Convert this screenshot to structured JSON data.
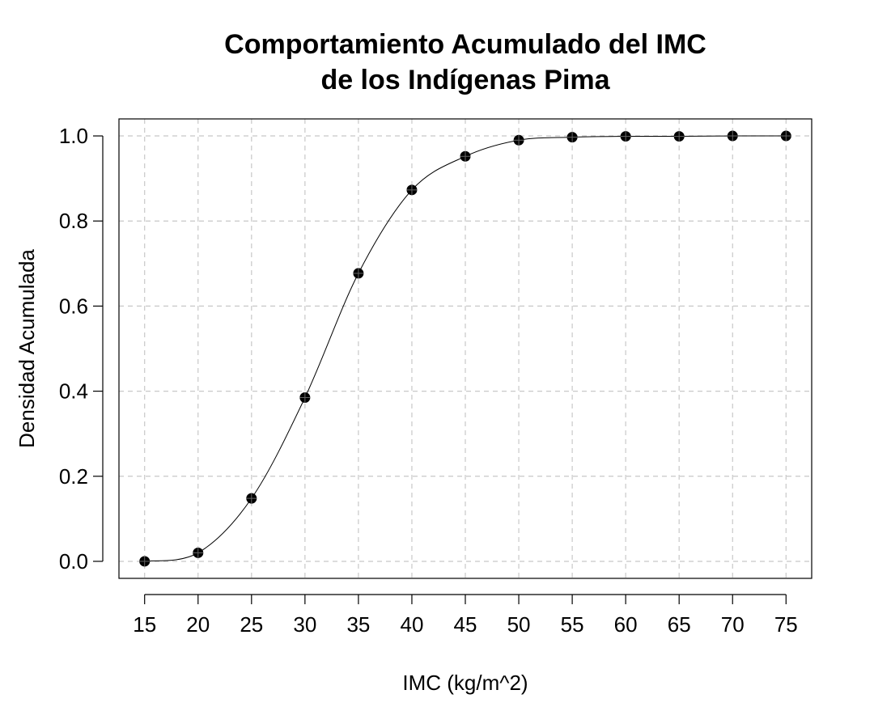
{
  "chart_data": {
    "type": "line",
    "title": "Comportamiento Acumulado del IMC de los Indígenas Pima",
    "title_lines": [
      "Comportamiento Acumulado del IMC",
      "de los Indígenas Pima"
    ],
    "xlabel": "IMC (kg/m^2)",
    "ylabel": "Densidad Acumulada",
    "x": [
      15,
      20,
      25,
      30,
      35,
      40,
      45,
      50,
      55,
      60,
      65,
      70,
      75
    ],
    "y": [
      0.0,
      0.02,
      0.148,
      0.385,
      0.677,
      0.873,
      0.952,
      0.99,
      0.997,
      0.999,
      0.999,
      1.0,
      1.0
    ],
    "xlim": [
      12.6,
      77.4
    ],
    "ylim": [
      -0.04,
      1.04
    ],
    "x_ticks": [
      15,
      20,
      25,
      30,
      35,
      40,
      45,
      50,
      55,
      60,
      65,
      70,
      75
    ],
    "x_tick_labels": [
      "15",
      "20",
      "25",
      "30",
      "35",
      "40",
      "45",
      "50",
      "55",
      "60",
      "65",
      "70",
      "75"
    ],
    "y_ticks": [
      0.0,
      0.2,
      0.4,
      0.6,
      0.8,
      1.0
    ],
    "y_tick_labels": [
      "0.0",
      "0.2",
      "0.4",
      "0.6",
      "0.8",
      "1.0"
    ],
    "grid": true,
    "line_color": "#000000",
    "point_color": "#000000",
    "grid_color": "#c8c8c8"
  }
}
